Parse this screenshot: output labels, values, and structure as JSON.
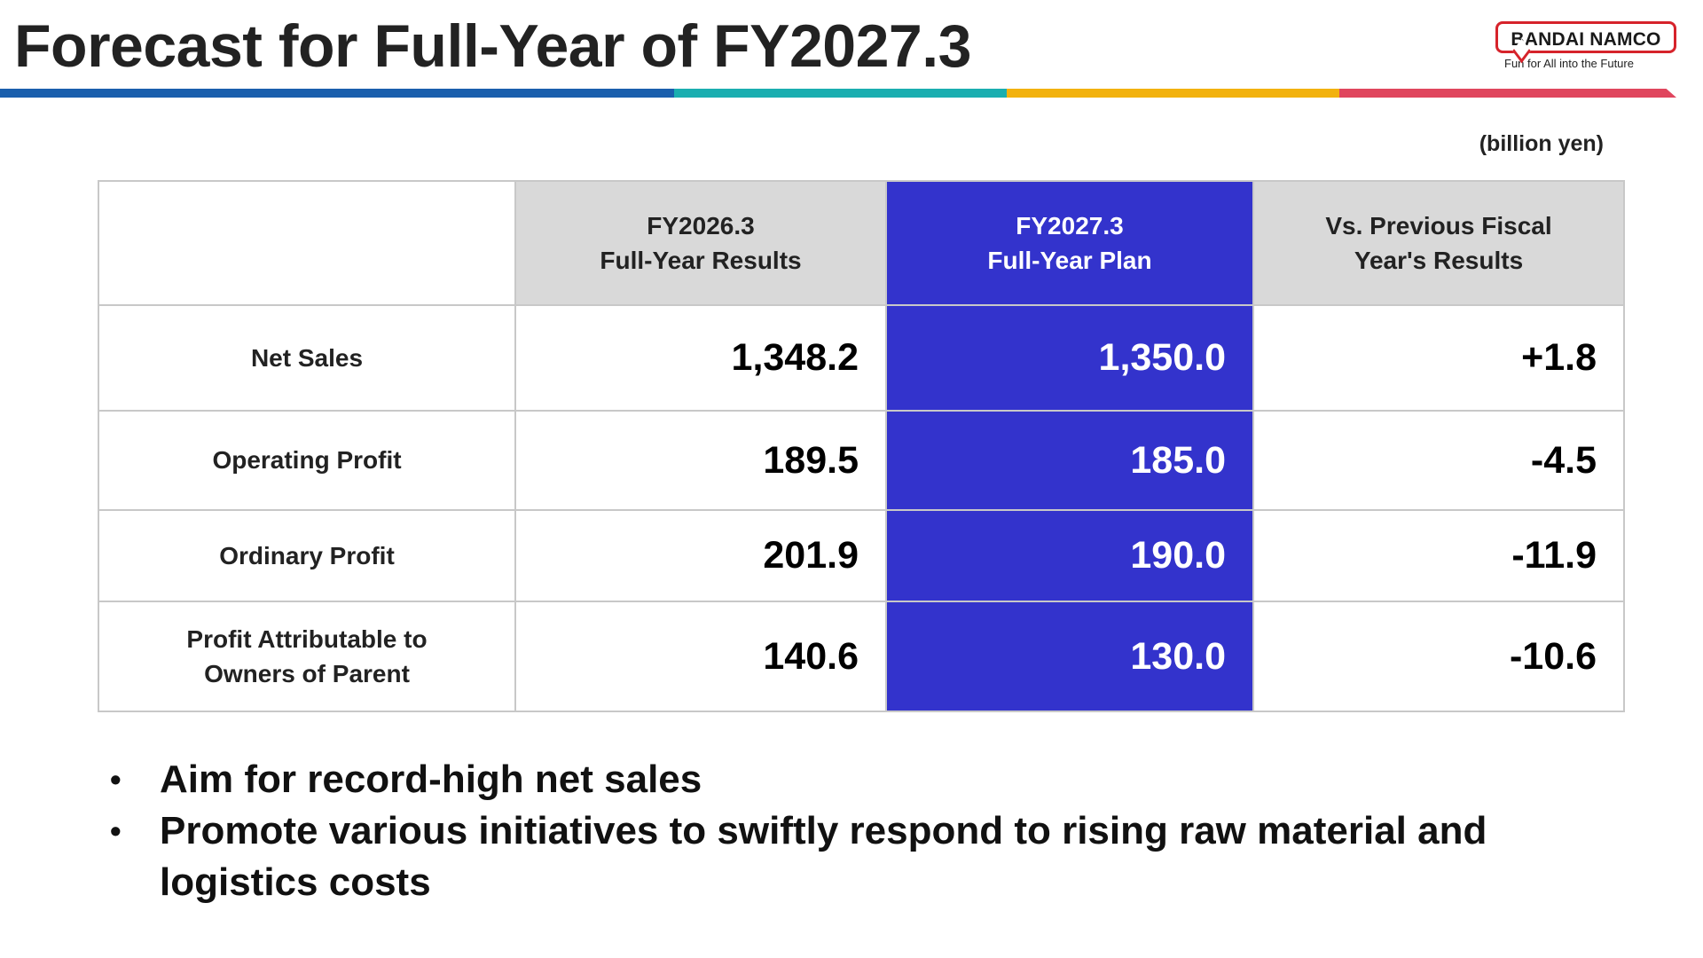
{
  "title": "Forecast for Full-Year of FY2027.3",
  "logo": {
    "brand": "BANDAI NAMCO",
    "tagline": "Fun for All into the Future"
  },
  "stripe_colors": [
    "#1a5fad",
    "#1aaeb0",
    "#f2b20e",
    "#e0465e"
  ],
  "unit": "(billion yen)",
  "table": {
    "headers": {
      "prev_line1": "FY2026.3",
      "prev_line2": "Full-Year Results",
      "plan_line1": "FY2027.3",
      "plan_line2": "Full-Year Plan",
      "vs_line1": "Vs. Previous Fiscal",
      "vs_line2": "Year's Results"
    },
    "rows": [
      {
        "label_line1": "Net Sales",
        "label_line2": "",
        "prev": "1,348.2",
        "plan": "1,350.0",
        "vs": "+1.8"
      },
      {
        "label_line1": "Operating Profit",
        "label_line2": "",
        "prev": "189.5",
        "plan": "185.0",
        "vs": "-4.5"
      },
      {
        "label_line1": "Ordinary Profit",
        "label_line2": "",
        "prev": "201.9",
        "plan": "190.0",
        "vs": "-11.9"
      },
      {
        "label_line1": "Profit Attributable to",
        "label_line2": "Owners of Parent",
        "prev": "140.6",
        "plan": "130.0",
        "vs": "-10.6"
      }
    ],
    "colors": {
      "header_grey": "#d9d9d9",
      "plan_highlight": "#3333cc",
      "border": "#c8c8c8"
    }
  },
  "bullets": [
    "Aim for record-high net sales",
    "Promote various initiatives to swiftly respond to rising raw material and logistics costs"
  ],
  "bullet_glyph": "•"
}
